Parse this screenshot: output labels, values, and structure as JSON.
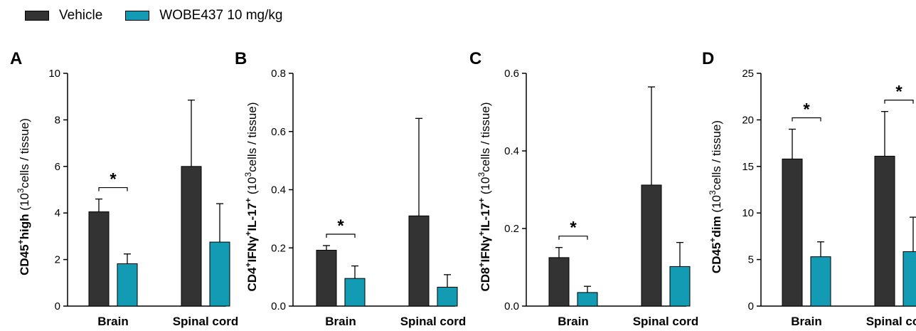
{
  "legend": {
    "items": [
      {
        "label": "Vehicle",
        "color": "#333333"
      },
      {
        "label": "WOBE437 10 mg/kg",
        "color": "#139bb3"
      }
    ]
  },
  "chart_data": [
    {
      "panel": "A",
      "type": "bar",
      "ylabel": "CD45⁺high (10³cells / tissue)",
      "ylim": [
        0,
        10
      ],
      "yticks": [
        0,
        2,
        4,
        6,
        8,
        10
      ],
      "tick_decimals": 0,
      "categories": [
        "Brain",
        "Spinal cord"
      ],
      "series": [
        {
          "name": "Vehicle",
          "values": [
            4.05,
            6.0
          ],
          "errors": [
            0.55,
            2.85
          ]
        },
        {
          "name": "WOBE437 10 mg/kg",
          "values": [
            1.82,
            2.75
          ],
          "errors": [
            0.42,
            1.65
          ]
        }
      ],
      "significance": [
        {
          "category_index": 0,
          "label": "*"
        }
      ]
    },
    {
      "panel": "B",
      "type": "bar",
      "ylabel": "CD4⁺IFNγ⁺IL-17⁺ (10³cells / tissue)",
      "ylim": [
        0,
        0.8
      ],
      "yticks": [
        0.0,
        0.2,
        0.4,
        0.6,
        0.8
      ],
      "tick_decimals": 1,
      "categories": [
        "Brain",
        "Spinal cord"
      ],
      "series": [
        {
          "name": "Vehicle",
          "values": [
            0.192,
            0.31
          ],
          "errors": [
            0.016,
            0.335
          ]
        },
        {
          "name": "WOBE437 10 mg/kg",
          "values": [
            0.095,
            0.065
          ],
          "errors": [
            0.043,
            0.043
          ]
        }
      ],
      "significance": [
        {
          "category_index": 0,
          "label": "*"
        }
      ]
    },
    {
      "panel": "C",
      "type": "bar",
      "ylabel": "CD8⁺IFNγ⁺IL-17⁺ (10³cells / tissue)",
      "ylim": [
        0,
        0.6
      ],
      "yticks": [
        0.0,
        0.2,
        0.4,
        0.6
      ],
      "tick_decimals": 1,
      "categories": [
        "Brain",
        "Spinal cord"
      ],
      "series": [
        {
          "name": "Vehicle",
          "values": [
            0.125,
            0.312
          ],
          "errors": [
            0.026,
            0.253
          ]
        },
        {
          "name": "WOBE437 10 mg/kg",
          "values": [
            0.035,
            0.102
          ],
          "errors": [
            0.016,
            0.062
          ]
        }
      ],
      "significance": [
        {
          "category_index": 0,
          "label": "*"
        }
      ]
    },
    {
      "panel": "D",
      "type": "bar",
      "ylabel": "CD45⁺dim (10³cells / tissue)",
      "ylim": [
        0,
        25
      ],
      "yticks": [
        0,
        5,
        10,
        15,
        20,
        25
      ],
      "tick_decimals": 0,
      "categories": [
        "Brain",
        "Spinal cord"
      ],
      "series": [
        {
          "name": "Vehicle",
          "values": [
            15.8,
            16.1
          ],
          "errors": [
            3.2,
            4.8
          ]
        },
        {
          "name": "WOBE437 10 mg/kg",
          "values": [
            5.3,
            5.85
          ],
          "errors": [
            1.6,
            3.7
          ]
        }
      ],
      "significance": [
        {
          "category_index": 0,
          "label": "*"
        },
        {
          "category_index": 1,
          "label": "*"
        }
      ]
    }
  ]
}
